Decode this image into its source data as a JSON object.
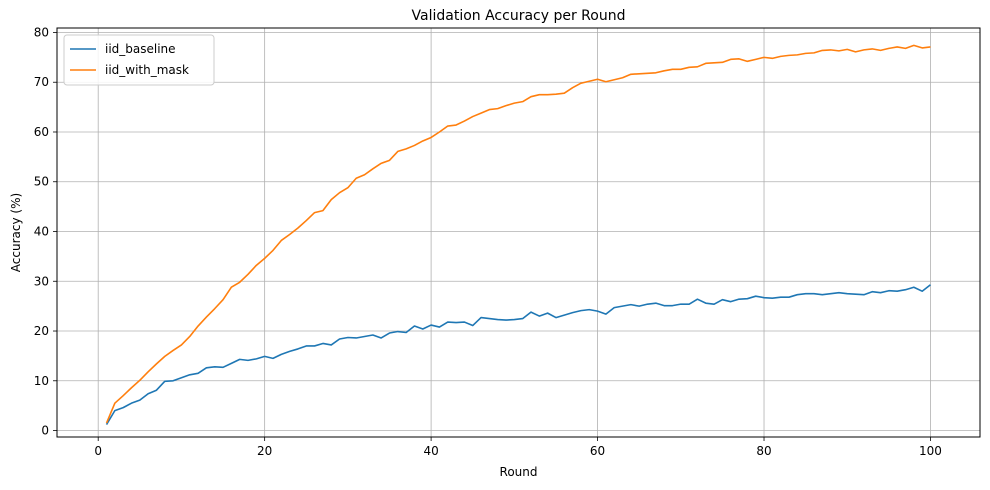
{
  "chart_data": {
    "type": "line",
    "title": "Validation Accuracy per Round",
    "xlabel": "Round",
    "ylabel": "Accuracy (%)",
    "xlim": [
      -4.95,
      105.95
    ],
    "ylim": [
      -1.3,
      80.9
    ],
    "xticks": [
      0,
      20,
      40,
      60,
      80,
      100
    ],
    "yticks": [
      0,
      10,
      20,
      30,
      40,
      50,
      60,
      70,
      80
    ],
    "grid": true,
    "legend_position": "top-left",
    "series": [
      {
        "name": "iid_baseline",
        "color": "#1f77b4",
        "values": [
          1.2,
          4.0,
          4.6,
          5.5,
          6.1,
          7.4,
          8.1,
          9.9,
          10.0,
          10.6,
          11.2,
          11.5,
          12.6,
          12.8,
          12.7,
          13.5,
          14.3,
          14.1,
          14.4,
          14.9,
          14.5,
          15.3,
          15.9,
          16.4,
          17.0,
          17.0,
          17.5,
          17.2,
          18.4,
          18.7,
          18.6,
          18.9,
          19.2,
          18.6,
          19.6,
          19.9,
          19.7,
          21.0,
          20.4,
          21.2,
          20.8,
          21.8,
          21.7,
          21.8,
          21.1,
          22.7,
          22.5,
          22.3,
          22.2,
          22.3,
          22.5,
          23.8,
          23.0,
          23.6,
          22.7,
          23.2,
          23.7,
          24.1,
          24.3,
          24.0,
          23.4,
          24.7,
          25.0,
          25.3,
          25.0,
          25.4,
          25.6,
          25.1,
          25.1,
          25.4,
          25.4,
          26.4,
          25.6,
          25.4,
          26.3,
          25.9,
          26.4,
          26.5,
          27.0,
          26.7,
          26.6,
          26.8,
          26.8,
          27.3,
          27.5,
          27.5,
          27.3,
          27.5,
          27.7,
          27.5,
          27.4,
          27.3,
          27.9,
          27.7,
          28.1,
          28.0,
          28.3,
          28.8,
          28.0,
          29.3
        ]
      },
      {
        "name": "iid_with_mask",
        "color": "#ff7f0e",
        "values": [
          1.5,
          5.5,
          7.0,
          8.6,
          10.1,
          11.8,
          13.4,
          14.9,
          16.1,
          17.2,
          18.9,
          21.0,
          22.8,
          24.5,
          26.3,
          28.8,
          29.8,
          31.4,
          33.2,
          34.6,
          36.2,
          38.2,
          39.4,
          40.7,
          42.2,
          43.8,
          44.2,
          46.4,
          47.8,
          48.8,
          50.7,
          51.4,
          52.6,
          53.7,
          54.3,
          56.1,
          56.6,
          57.3,
          58.2,
          58.9,
          60.0,
          61.2,
          61.4,
          62.2,
          63.1,
          63.8,
          64.5,
          64.7,
          65.3,
          65.8,
          66.1,
          67.1,
          67.5,
          67.5,
          67.6,
          67.8,
          68.9,
          69.8,
          70.2,
          70.6,
          70.1,
          70.5,
          70.9,
          71.6,
          71.7,
          71.8,
          71.9,
          72.3,
          72.6,
          72.6,
          73.0,
          73.1,
          73.8,
          73.9,
          74.0,
          74.6,
          74.7,
          74.2,
          74.6,
          75.0,
          74.8,
          75.2,
          75.4,
          75.5,
          75.8,
          75.9,
          76.4,
          76.5,
          76.3,
          76.6,
          76.1,
          76.5,
          76.7,
          76.4,
          76.8,
          77.1,
          76.8,
          77.4,
          76.9,
          77.1
        ]
      }
    ]
  }
}
